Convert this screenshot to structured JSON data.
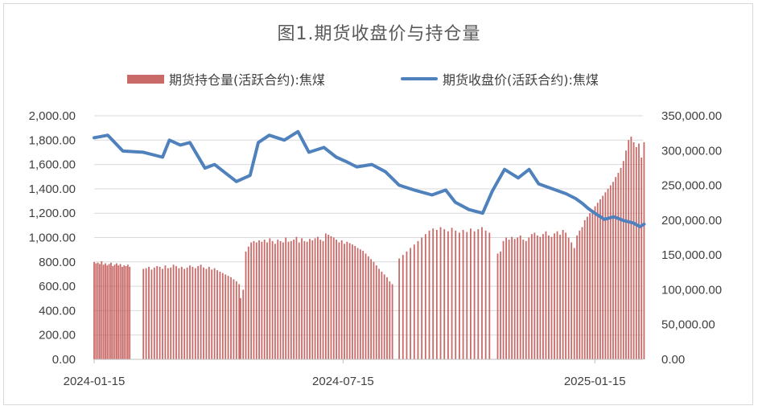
{
  "chart_data": {
    "type": "bar+line",
    "title": "图1.期货收盘价与持仓量",
    "legend": [
      "期货持仓量(活跃合约):焦煤",
      "期货收盘价(活跃合约):焦煤"
    ],
    "legend_position": "top",
    "x_tick_labels": [
      "2024-01-15",
      "2024-07-15",
      "2025-01-15"
    ],
    "y_left": {
      "ticks": [
        "0.00",
        "200.00",
        "400.00",
        "600.00",
        "800.00",
        "1,000.00",
        "1,200.00",
        "1,400.00",
        "1,600.00",
        "1,800.00",
        "2,000.00"
      ],
      "min": 0,
      "max": 2000
    },
    "y_right": {
      "ticks": [
        "0.00",
        "50,000.00",
        "100,000.00",
        "150,000.00",
        "200,000.00",
        "250,000.00",
        "300,000.00",
        "350,000.00"
      ],
      "min": 0,
      "max": 350000
    },
    "grid": "horizontal",
    "series": [
      {
        "name": "期货收盘价(活跃合约):焦煤",
        "type": "line",
        "axis": "left",
        "color": "#4f81bd",
        "points": [
          [
            "2024-01-15",
            1820
          ],
          [
            "2024-01-20",
            1830
          ],
          [
            "2024-01-25",
            1840
          ],
          [
            "2024-02-05",
            1710
          ],
          [
            "2024-02-20",
            1700
          ],
          [
            "2024-03-05",
            1660
          ],
          [
            "2024-03-10",
            1800
          ],
          [
            "2024-03-18",
            1760
          ],
          [
            "2024-03-25",
            1780
          ],
          [
            "2024-04-05",
            1570
          ],
          [
            "2024-04-12",
            1600
          ],
          [
            "2024-04-20",
            1530
          ],
          [
            "2024-04-28",
            1460
          ],
          [
            "2024-05-08",
            1510
          ],
          [
            "2024-05-14",
            1780
          ],
          [
            "2024-05-22",
            1840
          ],
          [
            "2024-06-02",
            1800
          ],
          [
            "2024-06-12",
            1870
          ],
          [
            "2024-06-20",
            1700
          ],
          [
            "2024-07-01",
            1740
          ],
          [
            "2024-07-10",
            1660
          ],
          [
            "2024-07-18",
            1620
          ],
          [
            "2024-07-25",
            1580
          ],
          [
            "2024-08-05",
            1600
          ],
          [
            "2024-08-15",
            1540
          ],
          [
            "2024-08-25",
            1430
          ],
          [
            "2024-09-05",
            1390
          ],
          [
            "2024-09-18",
            1350
          ],
          [
            "2024-09-28",
            1390
          ],
          [
            "2024-10-05",
            1290
          ],
          [
            "2024-10-15",
            1230
          ],
          [
            "2024-10-25",
            1200
          ],
          [
            "2024-11-01",
            1380
          ],
          [
            "2024-11-10",
            1560
          ],
          [
            "2024-11-20",
            1490
          ],
          [
            "2024-11-28",
            1560
          ],
          [
            "2024-12-05",
            1440
          ],
          [
            "2024-12-15",
            1400
          ],
          [
            "2024-12-25",
            1360
          ],
          [
            "2025-01-01",
            1320
          ],
          [
            "2025-01-06",
            1280
          ],
          [
            "2025-01-10",
            1240
          ],
          [
            "2025-01-15",
            1200
          ],
          [
            "2025-01-22",
            1150
          ],
          [
            "2025-01-29",
            1170
          ],
          [
            "2025-02-05",
            1140
          ],
          [
            "2025-02-12",
            1120
          ],
          [
            "2025-02-17",
            1090
          ],
          [
            "2025-02-20",
            1110
          ]
        ]
      },
      {
        "name": "期货持仓量(活跃合约):焦煤",
        "type": "bar",
        "axis": "right",
        "color": "#c0504d",
        "segments": [
          {
            "from": "2024-01-15",
            "to": "2024-02-10",
            "values": [
              140000,
              138000,
              139000,
              137000,
              141000,
              136000,
              138000,
              135000,
              137000,
              139000,
              134000,
              136000,
              138000,
              135000,
              137000,
              133000,
              135000,
              134000,
              136000,
              133000
            ]
          },
          {
            "from": "2024-02-20",
            "to": "2024-04-30",
            "values": [
              130000,
              131000,
              133000,
              129000,
              132000,
              134000,
              133000,
              130000,
              135000,
              131000,
              132000,
              136000,
              134000,
              131000,
              133000,
              130000,
              132000,
              135000,
              133000,
              131000,
              134000,
              136000,
              132000,
              130000,
              133000,
              129000,
              131000,
              128000,
              126000,
              124000,
              122000,
              120000,
              118000,
              115000,
              112000,
              108000
            ]
          },
          {
            "from": "2024-05-01",
            "to": "2024-08-20",
            "values": [
              88000,
              100000,
              155000,
              162000,
              168000,
              170000,
              168000,
              171000,
              169000,
              172000,
              168000,
              174000,
              170000,
              166000,
              172000,
              170000,
              168000,
              175000,
              169000,
              170000,
              172000,
              176000,
              168000,
              174000,
              170000,
              169000,
              173000,
              171000,
              174000,
              176000,
              172000,
              170000,
              181000,
              179000,
              177000,
              175000,
              172000,
              168000,
              171000,
              166000,
              169000,
              167000,
              165000,
              163000,
              160000,
              158000,
              156000,
              152000,
              148000,
              144000,
              140000,
              135000,
              130000,
              126000,
              122000,
              118000,
              112000,
              108000
            ]
          },
          {
            "from": "2024-08-25",
            "to": "2024-10-30",
            "values": [
              145000,
              150000,
              155000,
              160000,
              165000,
              170000,
              175000,
              180000,
              185000,
              188000,
              186000,
              190000,
              187000,
              184000,
              189000,
              185000,
              182000,
              186000,
              183000,
              188000,
              184000,
              187000,
              190000,
              185000,
              182000
            ]
          },
          {
            "from": "2024-11-05",
            "to": "2024-12-31",
            "values": [
              152000,
              155000,
              170000,
              175000,
              172000,
              176000,
              173000,
              175000,
              178000,
              172000,
              170000,
              175000,
              180000,
              182000,
              178000,
              176000,
              180000,
              184000,
              178000,
              176000,
              181000,
              184000,
              179000,
              186000,
              182000,
              175000,
              168000,
              160000
            ]
          },
          {
            "from": "2025-01-02",
            "to": "2025-02-20",
            "values": [
              178000,
              185000,
              190000,
              200000,
              205000,
              210000,
              215000,
              220000,
              225000,
              230000,
              235000,
              240000,
              245000,
              250000,
              255000,
              262000,
              268000,
              275000,
              285000,
              300000,
              315000,
              320000,
              312000,
              305000,
              310000,
              290000,
              312000
            ]
          }
        ]
      }
    ]
  }
}
